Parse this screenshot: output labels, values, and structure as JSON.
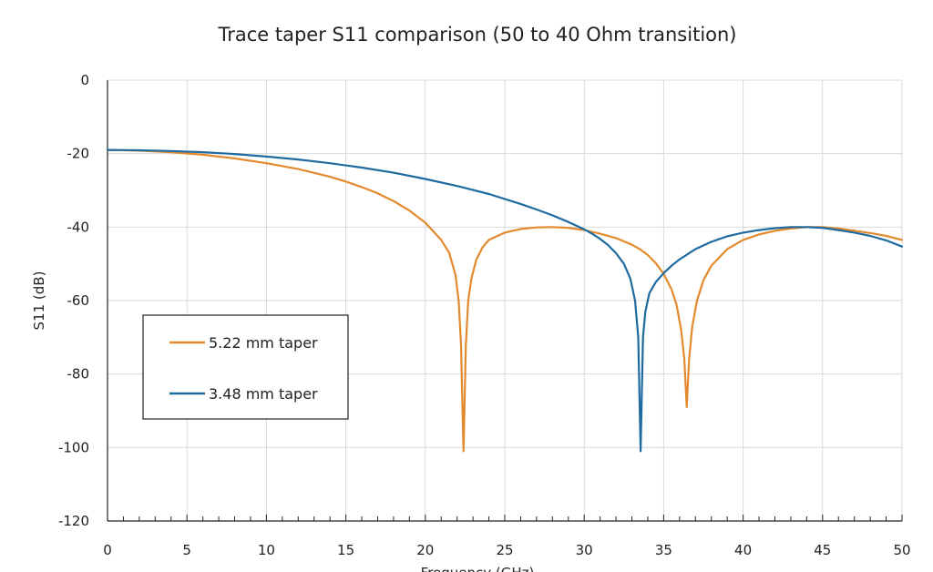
{
  "chart_data": {
    "type": "line",
    "title": "Trace taper S11 comparison (50 to 40 Ohm transition)",
    "xlabel": "Frequency (GHz)",
    "ylabel": "S11 (dB)",
    "xlim": [
      0,
      50
    ],
    "ylim": [
      -120,
      0
    ],
    "x_ticks": [
      0,
      5,
      10,
      15,
      20,
      25,
      30,
      35,
      40,
      45,
      50
    ],
    "x_tick_labels": [
      "0",
      "5",
      "10",
      "15",
      "20",
      "25",
      "30",
      "35",
      "40",
      "45",
      "50"
    ],
    "y_ticks": [
      0,
      -20,
      -40,
      -60,
      -80,
      -100,
      -120
    ],
    "y_tick_labels": [
      "0",
      "-20",
      "-40",
      "-60",
      "-80",
      "-100",
      "-120"
    ],
    "grid": true,
    "legend_position": "middle-left",
    "series": [
      {
        "name": "5.22 mm taper",
        "color": "#E38A2E",
        "x": [
          0,
          2,
          4,
          6,
          8,
          10,
          12,
          14,
          15,
          16,
          17,
          18,
          19,
          20,
          21,
          21.5,
          21.9,
          22.1,
          22.25,
          22.4,
          22.55,
          22.7,
          22.9,
          23.2,
          23.6,
          24,
          25,
          26,
          27,
          28,
          29,
          30,
          31,
          32,
          33,
          33.5,
          34,
          34.5,
          35,
          35.5,
          35.8,
          36.1,
          36.3,
          36.45,
          36.6,
          36.8,
          37.1,
          37.5,
          38,
          39,
          40,
          41,
          42,
          43,
          44,
          45,
          46,
          47,
          48,
          49,
          50
        ],
        "y": [
          -19,
          -19.2,
          -19.6,
          -20.3,
          -21.3,
          -22.6,
          -24.2,
          -26.3,
          -27.6,
          -29.1,
          -30.8,
          -32.9,
          -35.5,
          -38.8,
          -43.5,
          -47,
          -53,
          -60,
          -72,
          -101,
          -72,
          -60,
          -54,
          -49,
          -45.5,
          -43.5,
          -41.5,
          -40.5,
          -40.1,
          -40,
          -40.2,
          -40.8,
          -41.8,
          -43,
          -44.8,
          -46,
          -47.6,
          -49.8,
          -52.7,
          -57,
          -61,
          -68,
          -76,
          -89,
          -76,
          -67,
          -60,
          -54.5,
          -50.5,
          -46,
          -43.5,
          -42,
          -41,
          -40.4,
          -40,
          -40,
          -40.4,
          -41,
          -41.6,
          -42.4,
          -43.5
        ]
      },
      {
        "name": "3.48 mm taper",
        "color": "#1F6BA0",
        "x": [
          0,
          2,
          4,
          6,
          8,
          10,
          12,
          14,
          16,
          18,
          20,
          22,
          24,
          26,
          27,
          28,
          29,
          30,
          30.5,
          31,
          31.5,
          32,
          32.5,
          32.9,
          33.2,
          33.4,
          33.55,
          33.7,
          33.85,
          34.1,
          34.5,
          35,
          35.5,
          36,
          37,
          38,
          39,
          40,
          41,
          42,
          43,
          44,
          45,
          46,
          47,
          48,
          49,
          50
        ],
        "y": [
          -19,
          -19.1,
          -19.3,
          -19.6,
          -20.1,
          -20.8,
          -21.6,
          -22.6,
          -23.8,
          -25.2,
          -26.9,
          -28.8,
          -31,
          -33.7,
          -35.2,
          -36.8,
          -38.6,
          -40.6,
          -41.8,
          -43.2,
          -44.9,
          -47.1,
          -50,
          -54,
          -60,
          -70,
          -101,
          -70,
          -63,
          -58,
          -55,
          -52.5,
          -50.5,
          -48.8,
          -46,
          -44,
          -42.5,
          -41.5,
          -40.8,
          -40.3,
          -40,
          -40,
          -40.2,
          -40.8,
          -41.5,
          -42.4,
          -43.6,
          -45.3
        ]
      }
    ]
  }
}
